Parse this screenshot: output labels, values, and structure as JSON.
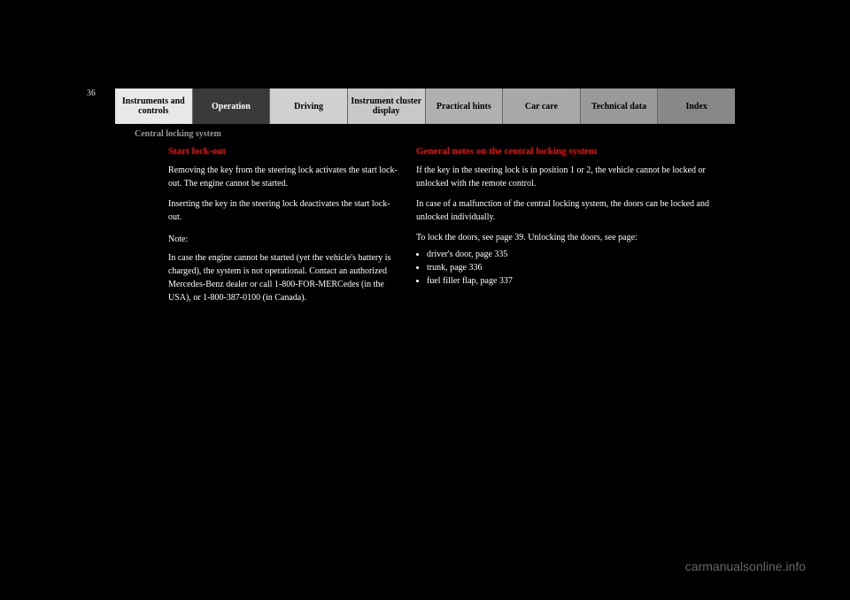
{
  "page_number": "36",
  "nav": {
    "tabs": [
      {
        "label": "Instruments and controls",
        "bg": "#e8e8e8",
        "fg": "#000000"
      },
      {
        "label": "Operation",
        "bg": "#3a3a3a",
        "fg": "#ffffff"
      },
      {
        "label": "Driving",
        "bg": "#d0d0d0",
        "fg": "#000000"
      },
      {
        "label": "Instrument cluster display",
        "bg": "#c8c8c8",
        "fg": "#000000"
      },
      {
        "label": "Practical hints",
        "bg": "#b0b0b0",
        "fg": "#000000"
      },
      {
        "label": "Car care",
        "bg": "#a8a8a8",
        "fg": "#000000"
      },
      {
        "label": "Technical data",
        "bg": "#9a9a9a",
        "fg": "#000000"
      },
      {
        "label": "Index",
        "bg": "#888888",
        "fg": "#000000"
      }
    ]
  },
  "section_header": "Central locking system",
  "left": {
    "heading": "Start lock-out",
    "p1": "Removing the key from the steering lock activates the start lock-out. The engine cannot be started.",
    "p2": "Inserting the key in the steering lock deactivates the start lock-out.",
    "note_label": "Note:",
    "note_text": "In case the engine cannot be started (yet the vehicle's battery is charged), the system is not operational. Contact an authorized Mercedes-Benz dealer or call 1-800-FOR-MERCedes (in the USA), or 1-800-387-0100 (in Canada)."
  },
  "right": {
    "heading": "General notes on the central locking system",
    "p1": "If the key in the steering lock is in position 1 or 2, the vehicle cannot be locked or unlocked with the remote control.",
    "p2": "In case of a malfunction of the central locking system, the doors can be locked and unlocked individually.",
    "p3_intro": "To lock the doors, see page 39. Unlocking the doors, see page:",
    "bullets": [
      "driver's door, page 335",
      "trunk, page 336",
      "fuel filler flap, page 337"
    ]
  },
  "watermark": "carmanualsonline.info",
  "colors": {
    "background": "#000000",
    "heading_red": "#ff0000",
    "body_text": "#ffffff",
    "muted": "#999999",
    "watermark": "#666666"
  }
}
